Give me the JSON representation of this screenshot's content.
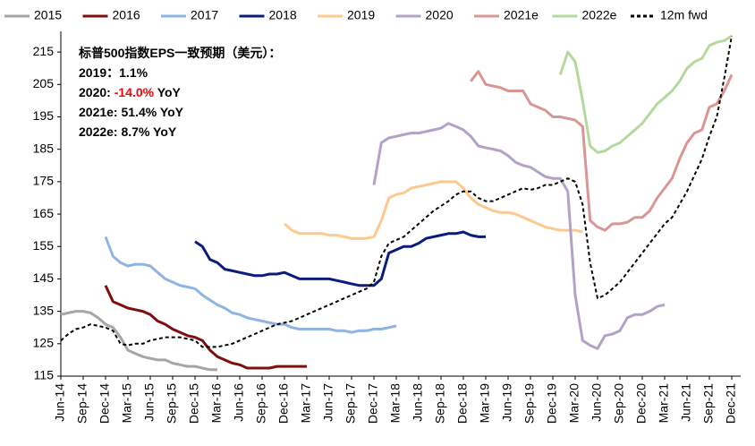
{
  "chart_data": {
    "type": "line",
    "annotations": [
      [
        {
          "text": "标普500指数EPS一致预期（美元）："
        }
      ],
      [
        {
          "text": "2019：1.1%"
        }
      ],
      [
        {
          "text": "2020: "
        },
        {
          "text": "-14.0%",
          "color": "#ff0000"
        },
        {
          "text": " YoY"
        }
      ],
      [
        {
          "text": "2021e: 51.4% YoY"
        }
      ],
      [
        {
          "text": "2022e: 8.7% YoY"
        }
      ]
    ],
    "categories": [
      "Jun-14",
      null,
      null,
      "Sep-14",
      null,
      null,
      "Dec-14",
      null,
      null,
      "Mar-15",
      null,
      null,
      "Jun-15",
      null,
      null,
      "Sep-15",
      null,
      null,
      "Dec-15",
      null,
      null,
      "Mar-16",
      null,
      null,
      "Jun-16",
      null,
      null,
      "Sep-16",
      null,
      null,
      "Dec-16",
      null,
      null,
      "Mar-17",
      null,
      null,
      "Jun-17",
      null,
      null,
      "Sep-17",
      null,
      null,
      "Dec-17",
      null,
      null,
      "Mar-18",
      null,
      null,
      "Jun-18",
      null,
      null,
      "Sep-18",
      null,
      null,
      "Dec-18",
      null,
      null,
      "Mar-19",
      null,
      null,
      "Jun-19",
      null,
      null,
      "Sep-19",
      null,
      null,
      "Dec-19",
      null,
      null,
      "Mar-20",
      null,
      null,
      "Jun-20",
      null,
      null,
      "Sep-20",
      null,
      null,
      "Dec-20",
      null,
      null,
      "Mar-21",
      null,
      null,
      "Jun-21",
      null,
      null,
      "Sep-21",
      null,
      null,
      "Dec-21"
    ],
    "ylim": [
      115,
      220
    ],
    "yticks": [
      115,
      125,
      135,
      145,
      155,
      165,
      175,
      185,
      195,
      205,
      215
    ],
    "grid": false,
    "legend": "top",
    "series": [
      {
        "name": "2015",
        "color": "#a6a6a6",
        "values": [
          134,
          134.5,
          135,
          135,
          134.5,
          133,
          131,
          130,
          127,
          123,
          122,
          121,
          120.5,
          120,
          120,
          119,
          118.5,
          118,
          118,
          117.5,
          117,
          117,
          null,
          null,
          null,
          null,
          null,
          null,
          null,
          null,
          null,
          null,
          null,
          null,
          null,
          null,
          null,
          null,
          null,
          null,
          null,
          null,
          null,
          null,
          null,
          null,
          null,
          null,
          null,
          null,
          null,
          null,
          null,
          null,
          null,
          null,
          null,
          null,
          null,
          null,
          null,
          null,
          null,
          null,
          null,
          null,
          null,
          null,
          null,
          null,
          null,
          null,
          null,
          null,
          null,
          null,
          null,
          null,
          null,
          null,
          null,
          null,
          null,
          null,
          null,
          null,
          null,
          null,
          null,
          null,
          null
        ]
      },
      {
        "name": "2016",
        "color": "#7f0f0f",
        "values": [
          null,
          null,
          null,
          null,
          null,
          null,
          143,
          138,
          137,
          136,
          135.5,
          135,
          134,
          132,
          131,
          129.5,
          128.5,
          127.5,
          127,
          126,
          123,
          121,
          120,
          119,
          118.5,
          117.5,
          117.5,
          117.5,
          117.5,
          118,
          118,
          118,
          118,
          118,
          null,
          null,
          null,
          null,
          null,
          null,
          null,
          null,
          null,
          null,
          null,
          null,
          null,
          null,
          null,
          null,
          null,
          null,
          null,
          null,
          null,
          null,
          null,
          null,
          null,
          null,
          null,
          null,
          null,
          null,
          null,
          null,
          null,
          null,
          null,
          null,
          null,
          null,
          null,
          null,
          null,
          null,
          null,
          null,
          null,
          null,
          null,
          null,
          null,
          null,
          null,
          null,
          null,
          null,
          null,
          null,
          null
        ]
      },
      {
        "name": "2017",
        "color": "#8db4e2",
        "values": [
          null,
          null,
          null,
          null,
          null,
          null,
          158,
          152,
          150,
          149,
          149.5,
          149.5,
          149,
          147,
          145,
          144,
          143,
          142.5,
          142,
          140,
          138.5,
          137,
          136,
          134.5,
          134,
          133,
          132.5,
          132,
          131.5,
          131,
          131,
          130,
          129.5,
          129.5,
          129.5,
          129.5,
          129.5,
          129,
          129,
          128.5,
          129,
          129,
          129.5,
          129.5,
          130,
          130.5,
          null,
          null,
          null,
          null,
          null,
          null,
          null,
          null,
          null,
          null,
          null,
          null,
          null,
          null,
          null,
          null,
          null,
          null,
          null,
          null,
          null,
          null,
          null,
          null,
          null,
          null,
          null,
          null,
          null,
          null,
          null,
          null,
          null,
          null,
          null,
          null,
          null,
          null,
          null,
          null,
          null,
          null,
          null,
          null,
          null
        ]
      },
      {
        "name": "2018",
        "color": "#0c1c7c",
        "values": [
          null,
          null,
          null,
          null,
          null,
          null,
          null,
          null,
          null,
          null,
          null,
          null,
          null,
          null,
          null,
          null,
          null,
          null,
          156.5,
          155,
          151,
          150,
          148,
          147.5,
          147,
          146.5,
          146,
          146,
          146.5,
          146.5,
          147,
          146,
          145,
          145,
          145,
          145,
          145,
          144.5,
          144,
          143.5,
          143,
          143,
          143,
          145,
          153,
          154,
          155,
          155,
          156,
          157.5,
          158,
          158.5,
          159,
          159,
          159.5,
          158.5,
          158,
          158,
          null,
          null,
          null,
          null,
          null,
          null,
          null,
          null,
          null,
          null,
          null,
          null,
          null,
          null,
          null,
          null,
          null,
          null,
          null,
          null,
          null,
          null,
          null,
          null,
          null,
          null,
          null,
          null,
          null,
          null,
          null,
          null,
          null
        ]
      },
      {
        "name": "2019",
        "color": "#fcc98f",
        "values": [
          null,
          null,
          null,
          null,
          null,
          null,
          null,
          null,
          null,
          null,
          null,
          null,
          null,
          null,
          null,
          null,
          null,
          null,
          null,
          null,
          null,
          null,
          null,
          null,
          null,
          null,
          null,
          null,
          null,
          null,
          162,
          160,
          159,
          159,
          159,
          159,
          158.5,
          158.5,
          158,
          157.5,
          157.5,
          157.5,
          158,
          163,
          170,
          171,
          171.5,
          173,
          173.5,
          174,
          174.5,
          175,
          175,
          175,
          173,
          170,
          168,
          167,
          166,
          165.5,
          165.5,
          165,
          164,
          163,
          162,
          161,
          160.5,
          160,
          160,
          160,
          159.5,
          null,
          null,
          null,
          null,
          null,
          null,
          null,
          null,
          null,
          null,
          null,
          null,
          null,
          null,
          null,
          null,
          null,
          null,
          null,
          null
        ]
      },
      {
        "name": "2020",
        "color": "#b3a2c7",
        "values": [
          null,
          null,
          null,
          null,
          null,
          null,
          null,
          null,
          null,
          null,
          null,
          null,
          null,
          null,
          null,
          null,
          null,
          null,
          null,
          null,
          null,
          null,
          null,
          null,
          null,
          null,
          null,
          null,
          null,
          null,
          null,
          null,
          null,
          null,
          null,
          null,
          null,
          null,
          null,
          null,
          null,
          null,
          174,
          187,
          188.5,
          189,
          189.5,
          190,
          190,
          190.5,
          191,
          191.5,
          193,
          192,
          191,
          189,
          186,
          185.5,
          185,
          184.5,
          183,
          181,
          180,
          179.5,
          178,
          176.5,
          176,
          176,
          172,
          140,
          126,
          124.5,
          123.5,
          127.5,
          128,
          129,
          133,
          134,
          134,
          135,
          136.5,
          137,
          null,
          null,
          null,
          null,
          null,
          null,
          null,
          null,
          null
        ]
      },
      {
        "name": "2021e",
        "color": "#d99694",
        "values": [
          null,
          null,
          null,
          null,
          null,
          null,
          null,
          null,
          null,
          null,
          null,
          null,
          null,
          null,
          null,
          null,
          null,
          null,
          null,
          null,
          null,
          null,
          null,
          null,
          null,
          null,
          null,
          null,
          null,
          null,
          null,
          null,
          null,
          null,
          null,
          null,
          null,
          null,
          null,
          null,
          null,
          null,
          null,
          null,
          null,
          null,
          null,
          null,
          null,
          null,
          null,
          null,
          null,
          null,
          null,
          206,
          209,
          205,
          204.5,
          204,
          203,
          203,
          203,
          199,
          198,
          197,
          195,
          195,
          194.5,
          194,
          192,
          163,
          161,
          160,
          162,
          162,
          162.5,
          164,
          164,
          166,
          170,
          173,
          176,
          182,
          187,
          190,
          191,
          198,
          199,
          203,
          208
        ]
      },
      {
        "name": "2022e",
        "color": "#b5d99c",
        "values": [
          null,
          null,
          null,
          null,
          null,
          null,
          null,
          null,
          null,
          null,
          null,
          null,
          null,
          null,
          null,
          null,
          null,
          null,
          null,
          null,
          null,
          null,
          null,
          null,
          null,
          null,
          null,
          null,
          null,
          null,
          null,
          null,
          null,
          null,
          null,
          null,
          null,
          null,
          null,
          null,
          null,
          null,
          null,
          null,
          null,
          null,
          null,
          null,
          null,
          null,
          null,
          null,
          null,
          null,
          null,
          null,
          null,
          null,
          null,
          null,
          null,
          null,
          null,
          null,
          null,
          null,
          null,
          208,
          215,
          212,
          200,
          186,
          184,
          184.5,
          186,
          187,
          189,
          191,
          193,
          196,
          199,
          201,
          203,
          206,
          210,
          212,
          213,
          217,
          218,
          218.5,
          220
        ]
      },
      {
        "name": "12m fwd",
        "color": "#000000",
        "dashed": true,
        "values": [
          126,
          128,
          129.5,
          130,
          131,
          130.5,
          130,
          129,
          125,
          124.5,
          125,
          125,
          126,
          126.5,
          127,
          127,
          127,
          126.5,
          126,
          124,
          124,
          124,
          124.5,
          125,
          126,
          127,
          128,
          129,
          130,
          131,
          131.5,
          132,
          133,
          134,
          135,
          136,
          137,
          138,
          139,
          140,
          141,
          142,
          144,
          152,
          156,
          157,
          158,
          160,
          162,
          164,
          166,
          167.5,
          169,
          171,
          172,
          172,
          170,
          169,
          169,
          170,
          171,
          172,
          173,
          172.5,
          173,
          174,
          174,
          175,
          176,
          175,
          168,
          150,
          139,
          140,
          142,
          144,
          147,
          150,
          153,
          156,
          159,
          162,
          164,
          168,
          172,
          177,
          182,
          189,
          195,
          207,
          220
        ]
      }
    ]
  }
}
